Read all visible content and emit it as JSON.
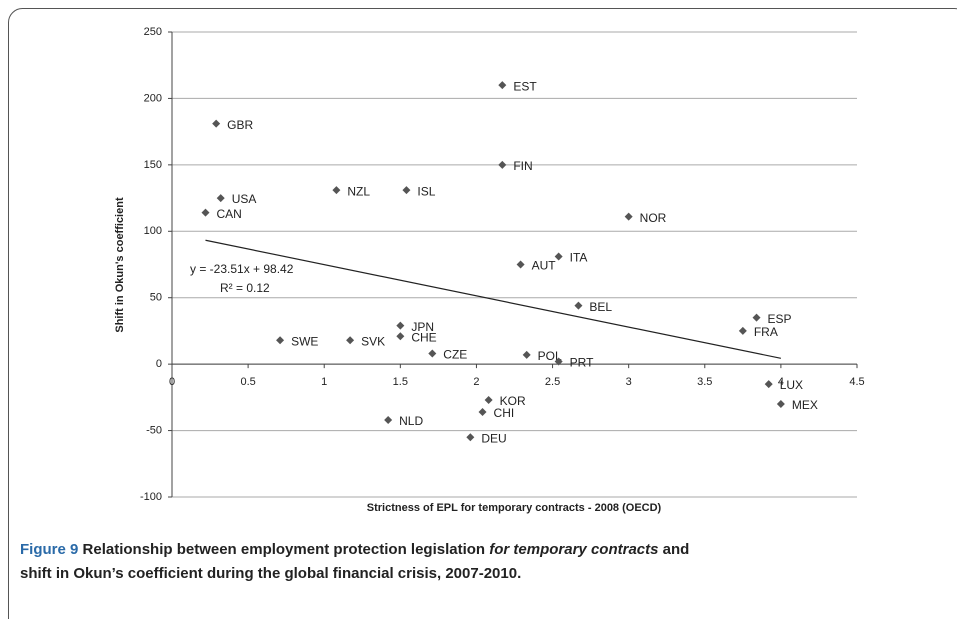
{
  "chart_data": {
    "type": "scatter",
    "x_label": "Strictness of EPL for temporary contracts - 2008 (OECD)",
    "y_label": "Shift in Okun's coefficient",
    "labels": [
      "EST",
      "GBR",
      "FIN",
      "NZL",
      "ISL",
      "USA",
      "CAN",
      "NOR",
      "ITA",
      "AUT",
      "BEL",
      "ESP",
      "FRA",
      "JPN",
      "CHE",
      "SWE",
      "SVK",
      "CZE",
      "POL",
      "PRT",
      "LUX",
      "KOR",
      "MEX",
      "CHI",
      "NLD",
      "DEU"
    ],
    "x": [
      2.17,
      0.29,
      2.17,
      1.08,
      1.54,
      0.32,
      0.22,
      3.0,
      2.54,
      2.29,
      2.67,
      3.84,
      3.75,
      1.5,
      1.5,
      0.71,
      1.17,
      1.71,
      2.33,
      2.54,
      3.92,
      2.08,
      4.0,
      2.04,
      1.42,
      1.96
    ],
    "values": [
      210,
      181,
      150,
      131,
      131,
      125,
      114,
      111,
      81,
      75,
      44,
      35,
      25,
      29,
      21,
      18,
      18,
      8,
      7,
      2,
      -15,
      -27,
      -30,
      -36,
      -42,
      -55
    ],
    "color": "#555555",
    "xlim": [
      0,
      4.5
    ],
    "xticks": [
      0,
      0.5,
      1,
      1.5,
      2,
      2.5,
      3,
      3.5,
      4,
      4.5
    ],
    "ylim": [
      -100,
      250
    ],
    "yticks": [
      -100,
      -50,
      0,
      50,
      100,
      150,
      200,
      250
    ],
    "grid": true,
    "trendline": {
      "slope": -23.51,
      "intercept": 98.42,
      "equation": "y = -23.51x + 98.42",
      "r2": "R² = 0.12"
    },
    "caption": {
      "label": "Figure 9",
      "text_1": " Relationship between employment protection legislation ",
      "italic": "for temporary contracts",
      "text_2": " and",
      "line_2": "shift in Okun’s coefficient during the global financial crisis, 2007-2010."
    }
  }
}
